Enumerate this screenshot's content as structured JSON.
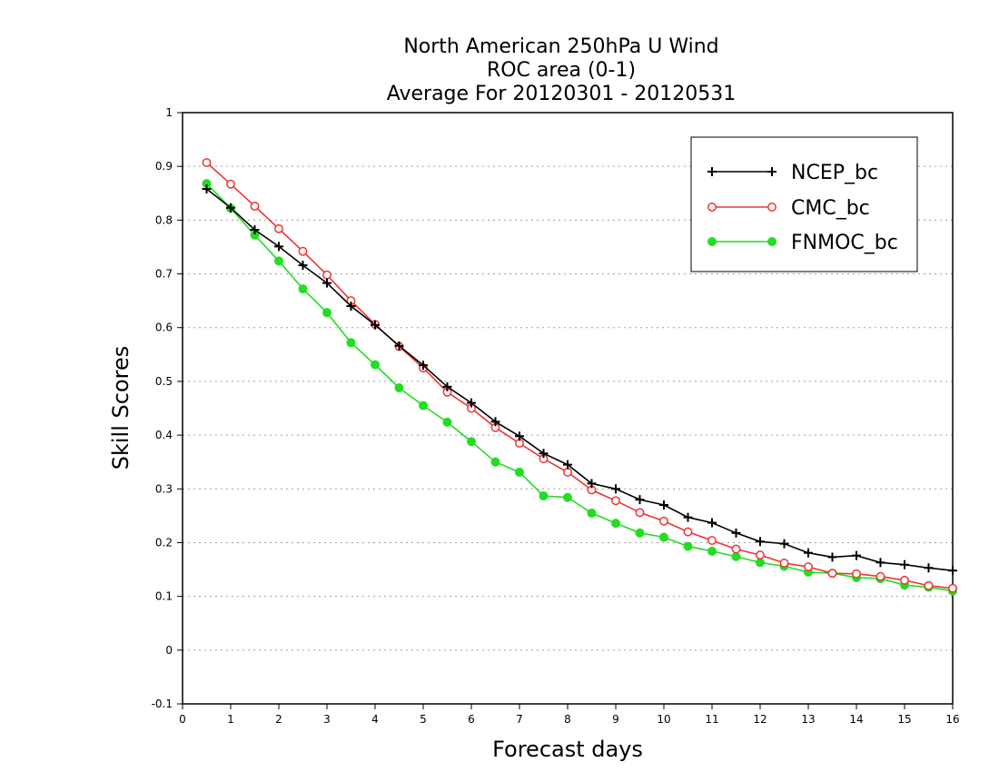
{
  "chart_data": {
    "type": "line",
    "title": [
      "North American 250hPa U Wind",
      "ROC area (0-1)",
      "Average For 20120301 - 20120531"
    ],
    "xlabel": "Forecast days",
    "ylabel": "Skill Scores",
    "xlim": [
      0,
      16
    ],
    "ylim": [
      -0.1,
      1
    ],
    "xticks": [
      "0",
      "1",
      "2",
      "3",
      "4",
      "5",
      "6",
      "7",
      "8",
      "9",
      "10",
      "11",
      "12",
      "13",
      "14",
      "15",
      "16"
    ],
    "yticks": [
      "-0.1",
      "0",
      "0.1",
      "0.2",
      "0.3",
      "0.4",
      "0.5",
      "0.6",
      "0.7",
      "0.8",
      "0.9",
      "1"
    ],
    "grid": "horizontal dotted",
    "legend_position": "top-right",
    "x": [
      0.5,
      1,
      1.5,
      2,
      2.5,
      3,
      3.5,
      4,
      4.5,
      5,
      5.5,
      6,
      6.5,
      7,
      7.5,
      8,
      8.5,
      9,
      9.5,
      10,
      10.5,
      11,
      11.5,
      12,
      12.5,
      13,
      13.5,
      14,
      14.5,
      15,
      15.5,
      16
    ],
    "series": [
      {
        "name": "NCEP_bc",
        "color": "#000000",
        "marker": "plus",
        "values": [
          0.858,
          0.823,
          0.782,
          0.751,
          0.716,
          0.683,
          0.64,
          0.605,
          0.566,
          0.53,
          0.49,
          0.46,
          0.425,
          0.398,
          0.366,
          0.345,
          0.31,
          0.3,
          0.28,
          0.27,
          0.247,
          0.237,
          0.218,
          0.202,
          0.198,
          0.181,
          0.173,
          0.176,
          0.163,
          0.159,
          0.153,
          0.148
        ]
      },
      {
        "name": "CMC_bc",
        "color": "#ee3333",
        "marker": "open-circle",
        "values": [
          0.907,
          0.867,
          0.826,
          0.784,
          0.742,
          0.698,
          0.65,
          0.606,
          0.565,
          0.525,
          0.48,
          0.45,
          0.414,
          0.385,
          0.356,
          0.331,
          0.298,
          0.278,
          0.256,
          0.24,
          0.22,
          0.204,
          0.188,
          0.177,
          0.162,
          0.155,
          0.143,
          0.142,
          0.137,
          0.13,
          0.12,
          0.115
        ]
      },
      {
        "name": "FNMOC_bc",
        "color": "#22dd22",
        "marker": "filled-circle",
        "values": [
          0.868,
          0.822,
          0.772,
          0.724,
          0.672,
          0.628,
          0.572,
          0.531,
          0.488,
          0.455,
          0.424,
          0.388,
          0.35,
          0.331,
          0.287,
          0.284,
          0.255,
          0.236,
          0.218,
          0.21,
          0.193,
          0.184,
          0.174,
          0.163,
          0.156,
          0.145,
          0.143,
          0.135,
          0.133,
          0.121,
          0.117,
          0.11
        ]
      }
    ]
  }
}
